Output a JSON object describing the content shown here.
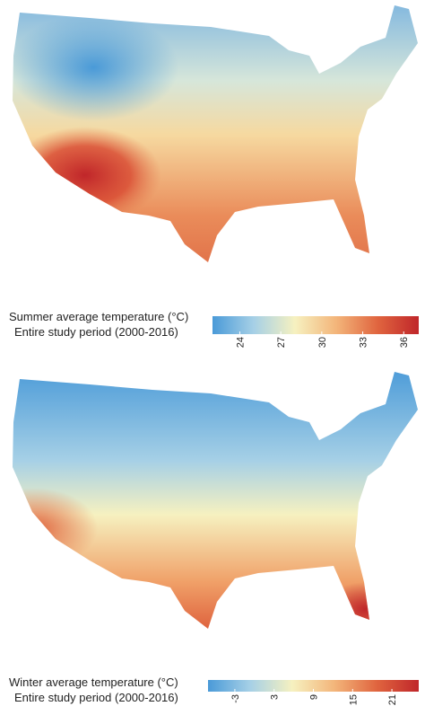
{
  "maps": [
    {
      "title": "Summer average temperature (°C)",
      "subtitle": "Entire study period (2000-2016)",
      "colorbar": {
        "lim": [
          22,
          37.1
        ],
        "ticks": [
          24,
          27,
          30,
          33,
          36
        ],
        "colors": [
          "#4a9ad8",
          "#a6d0e6",
          "#f6f1c0",
          "#f3b57a",
          "#e0653f",
          "#c0262a"
        ]
      }
    },
    {
      "title": "Winter average temperature (°C)",
      "subtitle": "Entire study period (2000-2016)",
      "colorbar": {
        "lim": [
          -7.1,
          25.1
        ],
        "ticks": [
          -3,
          3,
          9,
          15,
          21
        ],
        "colors": [
          "#4a9ad8",
          "#a6d0e6",
          "#f6f1c0",
          "#f3b57a",
          "#e0653f",
          "#c0262a"
        ]
      }
    }
  ]
}
